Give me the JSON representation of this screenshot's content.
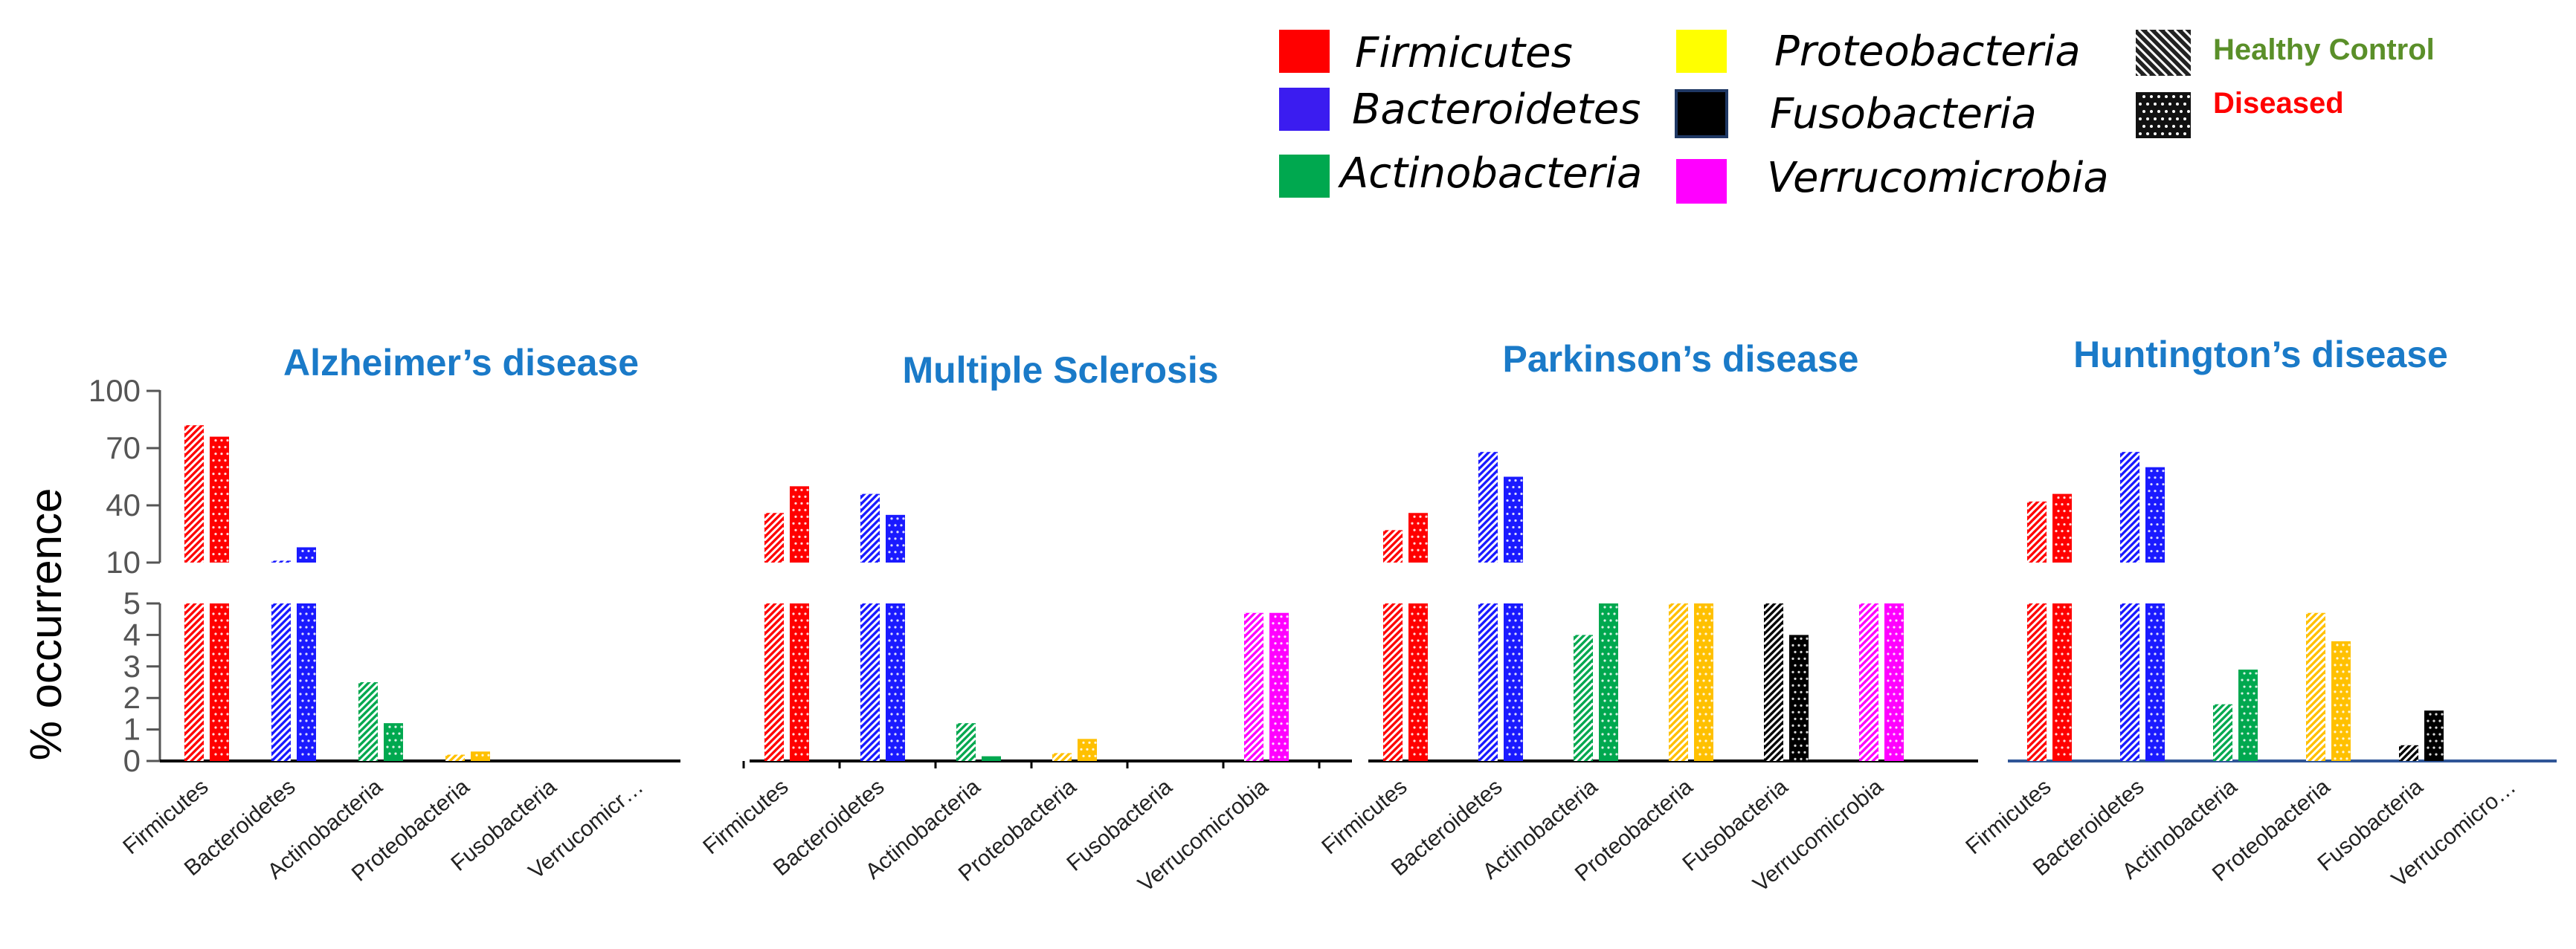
{
  "chart_data": {
    "type": "bar",
    "ylabel": "% occurrence",
    "yticks_top": [
      "100",
      "70",
      "40",
      "10"
    ],
    "yticks_bottom": [
      "5",
      "4",
      "3",
      "2",
      "1",
      "0"
    ],
    "legend": {
      "phyla": [
        {
          "name": "Firmicutes",
          "color": "#ff0000"
        },
        {
          "name": "Bacteroidetes",
          "color": "#3b1cf0"
        },
        {
          "name": "Actinobacteria",
          "color": "#00a84f"
        },
        {
          "name": "Proteobacteria",
          "color": "#ffff00"
        },
        {
          "name": "Fusobacteria",
          "color": "#000000"
        },
        {
          "name": "Verrucomicrobia",
          "color": "#ff00ff"
        }
      ],
      "groups": [
        {
          "name": "Healthy Control",
          "color": "#5a8f29",
          "pattern": "hatch"
        },
        {
          "name": "Diseased",
          "color": "#ff0000",
          "pattern": "dots"
        }
      ]
    },
    "panels": [
      {
        "title": "Alzheimer’s disease",
        "categories": [
          "Firmicutes",
          "Bacteroidetes",
          "Actinobacteria",
          "Proteobacteria",
          "Fusobacteria",
          "Verrucomicr…"
        ],
        "colors": [
          "#ff0000",
          "#1a1aff",
          "#00a84f",
          "#ffc000",
          "#000000",
          "#ff00ff"
        ],
        "series": [
          {
            "name": "Healthy Control",
            "values": [
              82,
              11,
              2.5,
              0.2,
              0,
              0
            ]
          },
          {
            "name": "Diseased",
            "values": [
              76,
              18,
              1.2,
              0.3,
              0,
              0
            ]
          }
        ]
      },
      {
        "title": "Multiple Sclerosis",
        "categories": [
          "Firmicutes",
          "Bacteroidetes",
          "Actinobacteria",
          "Proteobacteria",
          "Fusobacteria",
          "Verrucomicrobia"
        ],
        "colors": [
          "#ff0000",
          "#1a1aff",
          "#00a84f",
          "#ffc000",
          "#000000",
          "#ff00ff"
        ],
        "series": [
          {
            "name": "Healthy Control",
            "values": [
              36,
              46,
              1.2,
              0.25,
              0,
              4.7
            ]
          },
          {
            "name": "Diseased",
            "values": [
              50,
              35,
              0.15,
              0.7,
              0,
              4.7
            ]
          }
        ]
      },
      {
        "title": "Parkinson’s disease",
        "categories": [
          "Firmicutes",
          "Bacteroidetes",
          "Actinobacteria",
          "Proteobacteria",
          "Fusobacteria",
          "Verrucomicrobia"
        ],
        "colors": [
          "#ff0000",
          "#1a1aff",
          "#00a84f",
          "#ffc000",
          "#000000",
          "#ff00ff"
        ],
        "series": [
          {
            "name": "Healthy Control",
            "values": [
              27,
              68,
              4,
              5,
              5,
              5
            ]
          },
          {
            "name": "Diseased",
            "values": [
              36,
              55,
              5,
              5,
              4,
              5
            ]
          }
        ]
      },
      {
        "title": "Huntington’s disease",
        "categories": [
          "Firmicutes",
          "Bacteroidetes",
          "Actinobacteria",
          "Proteobacteria",
          "Fusobacteria",
          "Verrucomicro…"
        ],
        "colors": [
          "#ff0000",
          "#1a1aff",
          "#00a84f",
          "#ffc000",
          "#000000",
          "#ff00ff"
        ],
        "series": [
          {
            "name": "Healthy Control",
            "values": [
              42,
              68,
              1.8,
              4.7,
              0.5,
              0
            ]
          },
          {
            "name": "Diseased",
            "values": [
              46,
              60,
              2.9,
              3.8,
              1.6,
              0
            ]
          }
        ]
      }
    ]
  }
}
